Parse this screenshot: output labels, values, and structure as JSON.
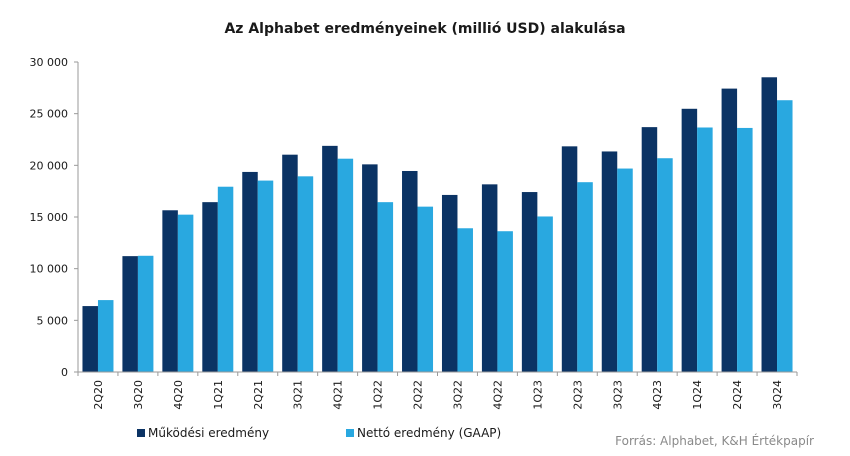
{
  "chart_data": {
    "type": "bar",
    "title": "Az Alphabet eredményeinek  (millió USD) alakulása",
    "xlabel": "",
    "ylabel": "",
    "ylim": [
      0,
      30000
    ],
    "yticks": [
      0,
      5000,
      10000,
      15000,
      20000,
      25000,
      30000
    ],
    "ytick_labels": [
      "0",
      "5 000",
      "10 000",
      "15 000",
      "20 000",
      "25 000",
      "30 000"
    ],
    "grid": false,
    "legend_position": "bottom-left",
    "categories": [
      "2Q20",
      "3Q20",
      "4Q20",
      "1Q21",
      "2Q21",
      "3Q21",
      "4Q21",
      "1Q22",
      "2Q22",
      "3Q22",
      "4Q22",
      "1Q23",
      "2Q23",
      "3Q23",
      "4Q23",
      "1Q24",
      "2Q24",
      "3Q24"
    ],
    "series": [
      {
        "name": "Működési eredmény",
        "color": "#0b3364",
        "values": [
          6380,
          11213,
          15651,
          16437,
          19361,
          21031,
          21885,
          20094,
          19453,
          17135,
          18160,
          17415,
          21838,
          21343,
          23697,
          25472,
          27425,
          28521
        ]
      },
      {
        "name": "Nettó eredmény (GAAP)",
        "color": "#29a8e0",
        "values": [
          6959,
          11247,
          15227,
          17930,
          18525,
          18936,
          20642,
          16436,
          16002,
          13910,
          13624,
          15051,
          18368,
          19689,
          20687,
          23662,
          23619,
          26301
        ]
      }
    ],
    "source": "Forrás: Alphabet, K&H Értékpapír"
  }
}
